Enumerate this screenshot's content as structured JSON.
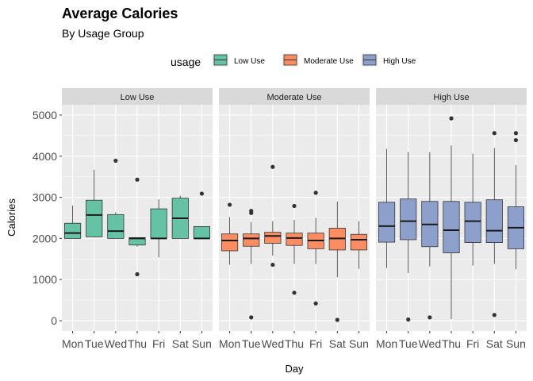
{
  "chart_data": {
    "type": "box",
    "title": "Average Calories",
    "subtitle": "By Usage Group",
    "xlabel": "Day",
    "ylabel": "Calories",
    "ylim": [
      -250,
      5250
    ],
    "yticks": [
      0,
      1000,
      2000,
      3000,
      4000,
      5000
    ],
    "grid": true,
    "legend": {
      "title": "usage",
      "placement": "top",
      "entries": [
        {
          "label": "Low Use",
          "color": "#66c2a5"
        },
        {
          "label": "Moderate Use",
          "color": "#fc8d62"
        },
        {
          "label": "High Use",
          "color": "#8da0cb"
        }
      ]
    },
    "categories": [
      "Mon",
      "Tue",
      "Wed",
      "Thu",
      "Fri",
      "Sat",
      "Sun"
    ],
    "panels": [
      {
        "label": "Low Use",
        "color": "#66c2a5",
        "boxes": [
          {
            "day": "Mon",
            "q1": 2000,
            "median": 2130,
            "q3": 2370,
            "whisker_low": 2000,
            "whisker_high": 2800,
            "outliers": []
          },
          {
            "day": "Tue",
            "q1": 2040,
            "median": 2570,
            "q3": 2930,
            "whisker_low": 2020,
            "whisker_high": 3670,
            "outliers": []
          },
          {
            "day": "Wed",
            "q1": 2000,
            "median": 2180,
            "q3": 2580,
            "whisker_low": 2000,
            "whisker_high": 2640,
            "outliers": [
              3890
            ]
          },
          {
            "day": "Thu",
            "q1": 1840,
            "median": 2000,
            "q3": 2020,
            "whisker_low": 1800,
            "whisker_high": 2020,
            "outliers": [
              3430,
              1130
            ]
          },
          {
            "day": "Fri",
            "q1": 2000,
            "median": 2000,
            "q3": 2720,
            "whisker_low": 1540,
            "whisker_high": 2950,
            "outliers": []
          },
          {
            "day": "Sat",
            "q1": 2000,
            "median": 2490,
            "q3": 2980,
            "whisker_low": 2000,
            "whisker_high": 3040,
            "outliers": []
          },
          {
            "day": "Sun",
            "q1": 2000,
            "median": 2000,
            "q3": 2290,
            "whisker_low": 2000,
            "whisker_high": 2290,
            "outliers": [
              3090
            ]
          }
        ]
      },
      {
        "label": "Moderate Use",
        "color": "#fc8d62",
        "boxes": [
          {
            "day": "Mon",
            "q1": 1700,
            "median": 1950,
            "q3": 2110,
            "whisker_low": 1360,
            "whisker_high": 2520,
            "outliers": [
              2820
            ]
          },
          {
            "day": "Tue",
            "q1": 1810,
            "median": 2000,
            "q3": 2110,
            "whisker_low": 1380,
            "whisker_high": 2400,
            "outliers": [
              2620,
              2670,
              80
            ]
          },
          {
            "day": "Wed",
            "q1": 1880,
            "median": 2060,
            "q3": 2150,
            "whisker_low": 1580,
            "whisker_high": 2420,
            "outliers": [
              3740,
              1360
            ]
          },
          {
            "day": "Thu",
            "q1": 1830,
            "median": 2010,
            "q3": 2130,
            "whisker_low": 1380,
            "whisker_high": 2450,
            "outliers": [
              2790,
              680
            ]
          },
          {
            "day": "Fri",
            "q1": 1750,
            "median": 1950,
            "q3": 2130,
            "whisker_low": 1380,
            "whisker_high": 2500,
            "outliers": [
              3110,
              420
            ]
          },
          {
            "day": "Sat",
            "q1": 1720,
            "median": 2000,
            "q3": 2250,
            "whisker_low": 1060,
            "whisker_high": 2900,
            "outliers": [
              20
            ]
          },
          {
            "day": "Sun",
            "q1": 1720,
            "median": 1970,
            "q3": 2100,
            "whisker_low": 1260,
            "whisker_high": 2420,
            "outliers": []
          }
        ]
      },
      {
        "label": "High Use",
        "color": "#8da0cb",
        "boxes": [
          {
            "day": "Mon",
            "q1": 1910,
            "median": 2300,
            "q3": 2880,
            "whisker_low": 1280,
            "whisker_high": 4180,
            "outliers": []
          },
          {
            "day": "Tue",
            "q1": 1970,
            "median": 2420,
            "q3": 2960,
            "whisker_low": 1160,
            "whisker_high": 4100,
            "outliers": [
              30
            ]
          },
          {
            "day": "Wed",
            "q1": 1800,
            "median": 2340,
            "q3": 2900,
            "whisker_low": 1320,
            "whisker_high": 4100,
            "outliers": [
              80
            ]
          },
          {
            "day": "Thu",
            "q1": 1650,
            "median": 2200,
            "q3": 2900,
            "whisker_low": 40,
            "whisker_high": 4260,
            "outliers": [
              4920
            ]
          },
          {
            "day": "Fri",
            "q1": 1900,
            "median": 2420,
            "q3": 2880,
            "whisker_low": 1340,
            "whisker_high": 4060,
            "outliers": []
          },
          {
            "day": "Sat",
            "q1": 1900,
            "median": 2190,
            "q3": 2940,
            "whisker_low": 1380,
            "whisker_high": 4200,
            "outliers": [
              4560,
              140
            ]
          },
          {
            "day": "Sun",
            "q1": 1750,
            "median": 2260,
            "q3": 2770,
            "whisker_low": 1250,
            "whisker_high": 3780,
            "outliers": [
              4390,
              4560
            ]
          }
        ]
      }
    ]
  }
}
